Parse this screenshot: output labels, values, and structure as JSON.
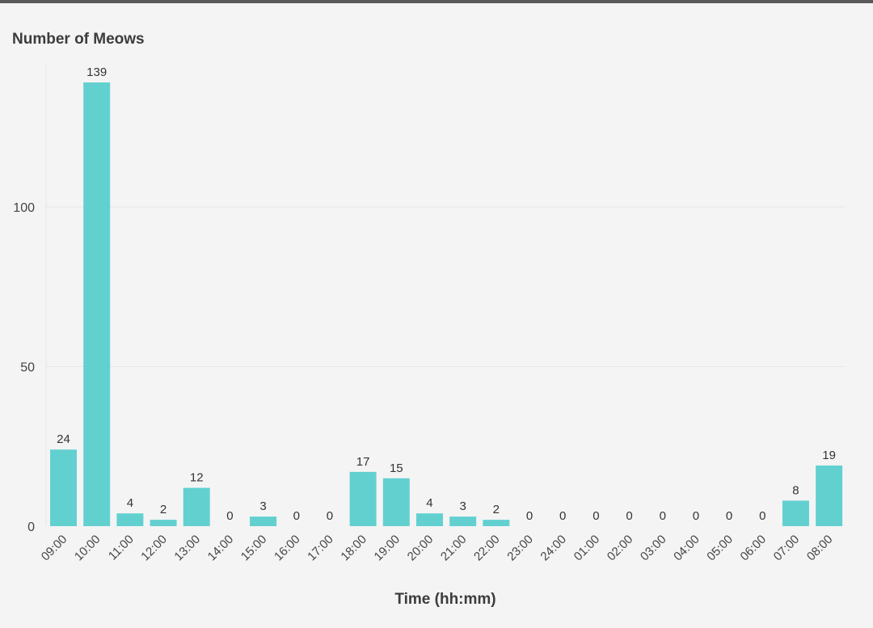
{
  "chart_data": {
    "type": "bar",
    "title": "Number of Meows",
    "xlabel": "Time (hh:mm)",
    "ylabel": "",
    "categories": [
      "09:00",
      "10:00",
      "11:00",
      "12:00",
      "13:00",
      "14:00",
      "15:00",
      "16:00",
      "17:00",
      "18:00",
      "19:00",
      "20:00",
      "21:00",
      "22:00",
      "23:00",
      "24:00",
      "01:00",
      "02:00",
      "03:00",
      "04:00",
      "05:00",
      "06:00",
      "07:00",
      "08:00"
    ],
    "values": [
      24,
      139,
      4,
      2,
      12,
      0,
      3,
      0,
      0,
      17,
      15,
      4,
      3,
      2,
      0,
      0,
      0,
      0,
      0,
      0,
      0,
      0,
      8,
      19
    ],
    "ylim": [
      0,
      139
    ],
    "yticks": [
      0,
      50,
      100
    ],
    "grid": true,
    "legend": "none",
    "bar_color": "#63d0d0",
    "gridline_color": "#e6e6e6"
  }
}
